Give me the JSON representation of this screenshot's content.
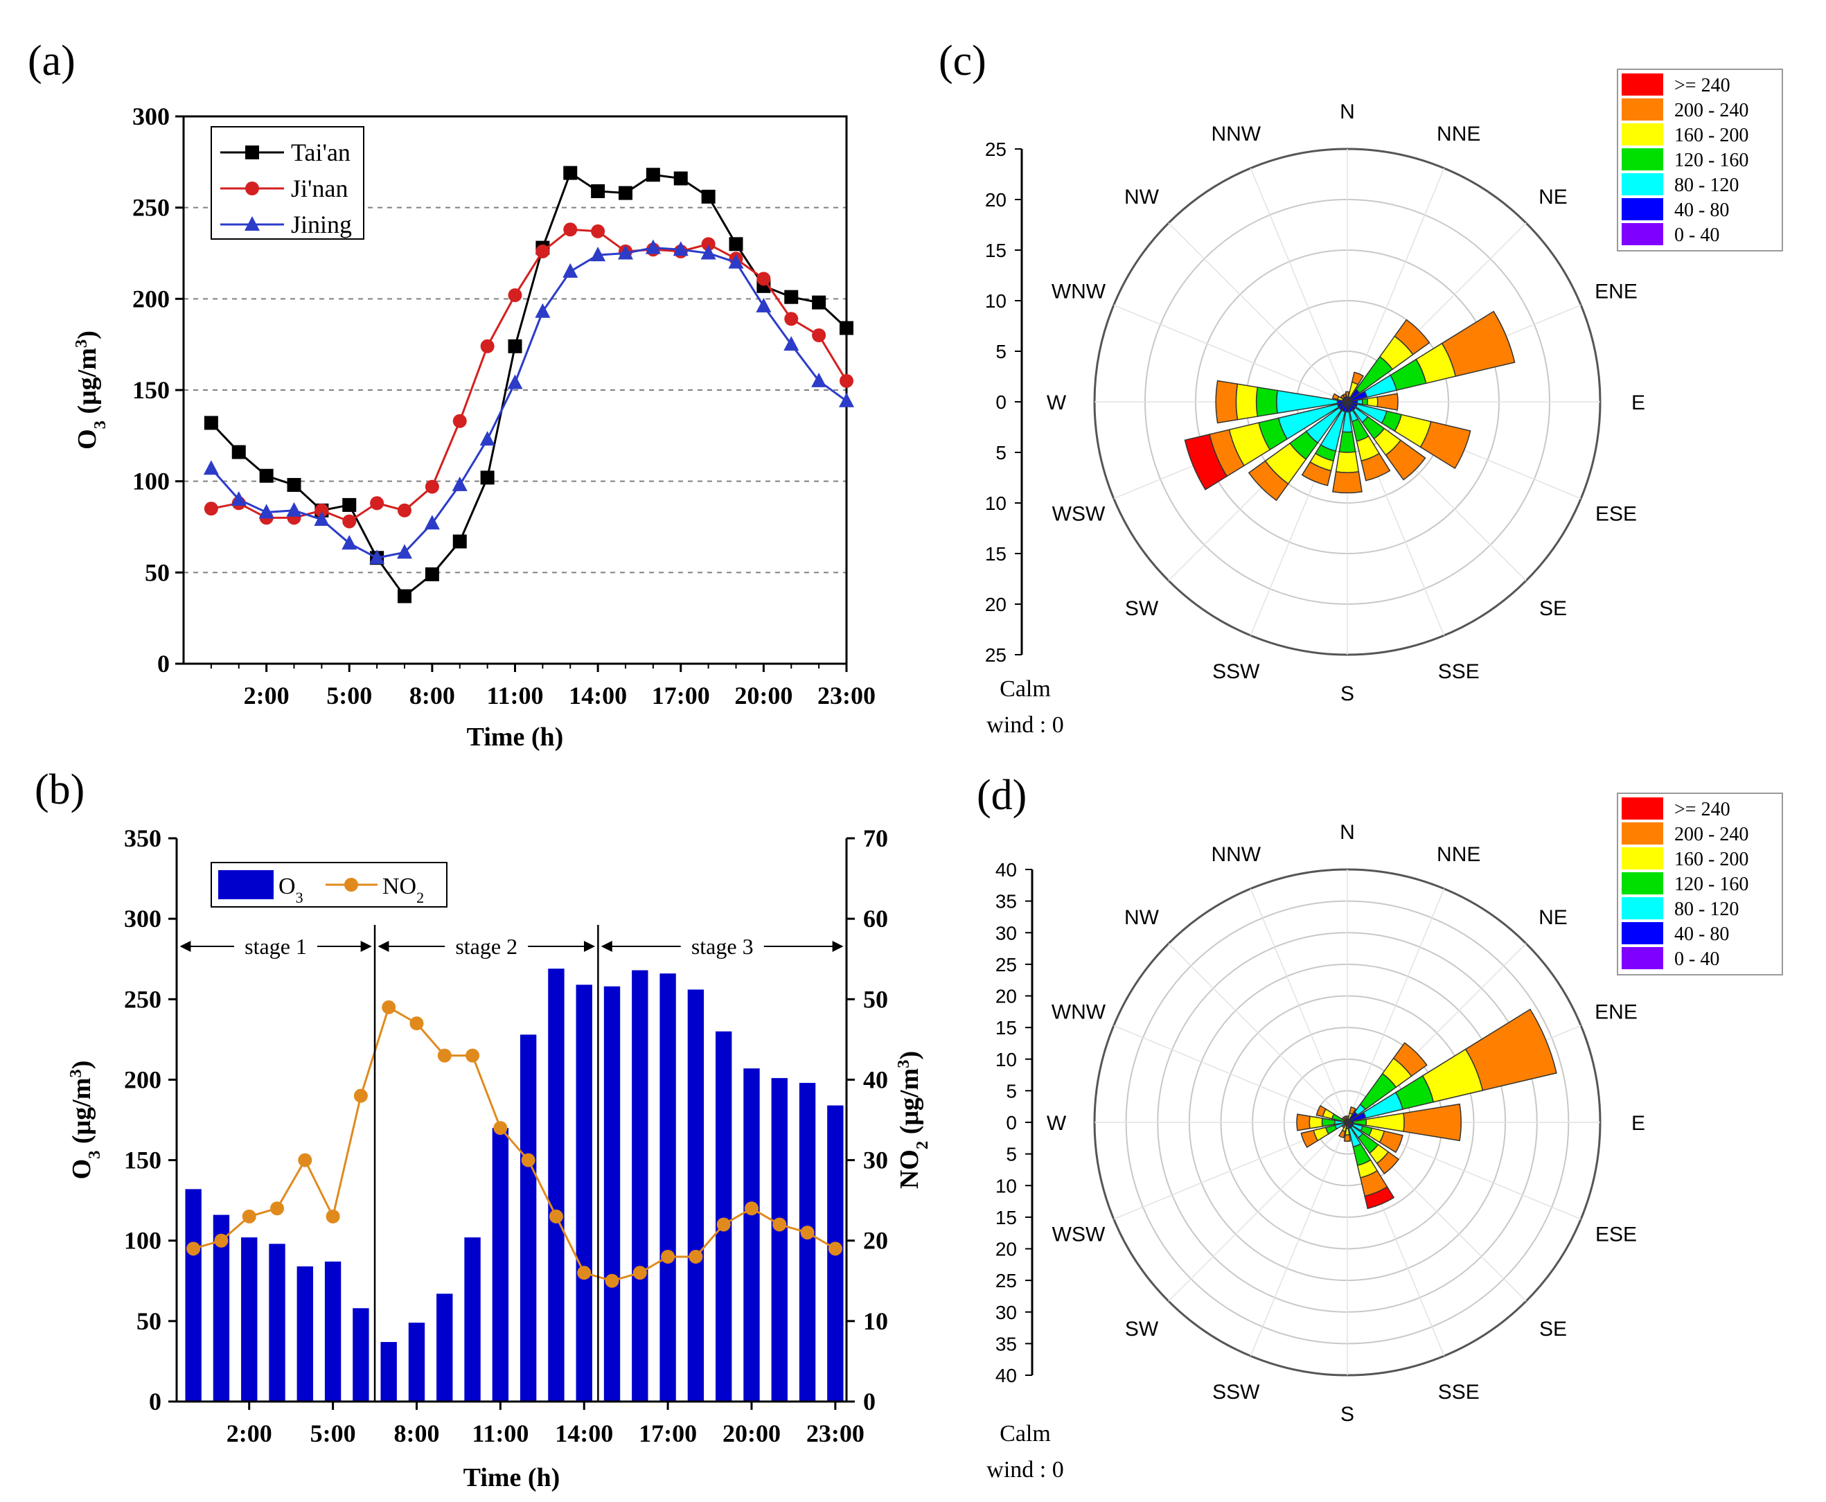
{
  "figure": {
    "panel_labels": [
      "(a)",
      "(b)",
      "(c)",
      "(d)"
    ],
    "colors": {
      "axis": "#000000",
      "grid": "#808080",
      "rose_grid": "#c8c8c8",
      "bar_blue": "#0000cd",
      "no2_orange": "#e08a1e"
    }
  },
  "chart_data": [
    {
      "panel": "(a)",
      "type": "line",
      "title": "",
      "xlabel": "Time (h)",
      "ylabel": "O3 (μg/m3)",
      "ylabel_parts": {
        "main": "O",
        "sub": "3",
        "unit": " (μg/m",
        "sup": "3",
        "close": ")"
      },
      "x": [
        1,
        2,
        3,
        4,
        5,
        6,
        7,
        8,
        9,
        10,
        11,
        12,
        13,
        14,
        15,
        16,
        17,
        18,
        19,
        20,
        21,
        22,
        23,
        24
      ],
      "xlim": [
        0,
        24
      ],
      "xticks": [
        3,
        6,
        9,
        12,
        15,
        18,
        21,
        24
      ],
      "xtick_labels": [
        "2:00",
        "5:00",
        "8:00",
        "11:00",
        "14:00",
        "17:00",
        "20:00",
        "23:00"
      ],
      "ylim": [
        0,
        300
      ],
      "yticks": [
        0,
        50,
        100,
        150,
        200,
        250,
        300
      ],
      "grid": "dashed horizontal",
      "legend_position": "top-left",
      "series": [
        {
          "name": "Tai'an",
          "color": "#000000",
          "marker": "square",
          "values": [
            132,
            116,
            103,
            98,
            84,
            87,
            58,
            37,
            49,
            67,
            102,
            174,
            228,
            269,
            259,
            258,
            268,
            266,
            256,
            230,
            207,
            201,
            198,
            184
          ]
        },
        {
          "name": "Ji'nan",
          "color": "#d42020",
          "marker": "circle",
          "values": [
            85,
            88,
            80,
            80,
            84,
            78,
            88,
            84,
            97,
            133,
            174,
            202,
            226,
            238,
            237,
            226,
            227,
            226,
            230,
            222,
            211,
            189,
            180,
            155
          ]
        },
        {
          "name": "Jining",
          "color": "#2c3cc8",
          "marker": "triangle",
          "values": [
            107,
            90,
            83,
            84,
            79,
            66,
            58,
            61,
            77,
            98,
            123,
            154,
            193,
            215,
            224,
            225,
            228,
            227,
            225,
            220,
            196,
            175,
            155,
            144
          ]
        }
      ]
    },
    {
      "panel": "(b)",
      "type": "bar",
      "xlabel": "Time (h)",
      "ylabel": "O3 (μg/m3)",
      "ylabel_parts": {
        "main": "O",
        "sub": "3",
        "unit": " (μg/m",
        "sup": "3",
        "close": ")"
      },
      "ylabel_right": "NO2 (μg/m3)",
      "ylabel_right_parts": {
        "main": "NO",
        "sub": "2",
        "unit": " (μg/m",
        "sup": "3",
        "close": ")"
      },
      "x": [
        1,
        2,
        3,
        4,
        5,
        6,
        7,
        8,
        9,
        10,
        11,
        12,
        13,
        14,
        15,
        16,
        17,
        18,
        19,
        20,
        21,
        22,
        23,
        24
      ],
      "xlim": [
        0,
        24
      ],
      "xticks": [
        3,
        6,
        9,
        12,
        15,
        18,
        21,
        24
      ],
      "xtick_labels": [
        "2:00",
        "5:00",
        "8:00",
        "11:00",
        "14:00",
        "17:00",
        "20:00",
        "23:00"
      ],
      "ylim": [
        0,
        350
      ],
      "yticks": [
        0,
        50,
        100,
        150,
        200,
        250,
        300,
        350
      ],
      "ylim_right": [
        0,
        70
      ],
      "yticks_right": [
        0,
        10,
        20,
        30,
        40,
        50,
        60,
        70
      ],
      "legend_position": "top-left",
      "legend": [
        {
          "label_main": "O",
          "label_sub": "3",
          "kind": "bar",
          "color": "#0000cd"
        },
        {
          "label_main": "NO",
          "label_sub": "2",
          "kind": "line",
          "color": "#e08a1e"
        }
      ],
      "series": [
        {
          "name": "O3",
          "axis": "left",
          "kind": "bar",
          "color": "#0000cd",
          "values": [
            132,
            116,
            102,
            98,
            84,
            87,
            58,
            37,
            49,
            67,
            102,
            170,
            228,
            269,
            259,
            258,
            268,
            266,
            256,
            230,
            207,
            201,
            198,
            184
          ]
        },
        {
          "name": "NO2",
          "axis": "right",
          "kind": "line",
          "color": "#e08a1e",
          "values": [
            19,
            20,
            23,
            24,
            30,
            23,
            38,
            49,
            47,
            43,
            43,
            34,
            30,
            23,
            16,
            15,
            16,
            18,
            18,
            22,
            24,
            22,
            21,
            19
          ]
        }
      ],
      "stage_dividers_x": [
        7.5,
        15.5
      ],
      "stages": [
        {
          "label": "stage 1",
          "from": 0,
          "to": 7.5
        },
        {
          "label": "stage 2",
          "from": 7.5,
          "to": 15.5
        },
        {
          "label": "stage 3",
          "from": 15.5,
          "to": 24
        }
      ]
    },
    {
      "panel": "(c)",
      "type": "windrose",
      "directions": [
        "N",
        "NNE",
        "NE",
        "ENE",
        "E",
        "ESE",
        "SE",
        "SSE",
        "S",
        "SSW",
        "SW",
        "WSW",
        "W",
        "WNW",
        "NW",
        "NNW"
      ],
      "radial_max": 25,
      "radial_ticks": [
        0,
        5,
        10,
        15,
        20,
        25
      ],
      "axis_labels_top": [
        "25",
        "20",
        "15",
        "10",
        "5",
        "0"
      ],
      "axis_labels_bottom": [
        "5",
        "10",
        "15",
        "20",
        "25"
      ],
      "calm_label": [
        "Calm",
        "wind : 0"
      ],
      "legend_position": "top-right",
      "bins": [
        ">= 240",
        "200 - 240",
        "160 - 200",
        "120 - 160",
        "80 - 120",
        "40 - 80",
        "0 - 40"
      ],
      "bin_colors": [
        "#ff0000",
        "#ff8000",
        "#ffff00",
        "#00e000",
        "#00ffff",
        "#0000ff",
        "#8000ff"
      ],
      "petals": [
        {
          "dir": "N",
          "segments": [
            0.5,
            0.5,
            0,
            0,
            0,
            0,
            0
          ]
        },
        {
          "dir": "NNE",
          "segments": [
            0.5,
            1,
            1.5,
            0,
            0,
            0,
            0
          ]
        },
        {
          "dir": "NE",
          "segments": [
            1.5,
            2,
            2.5,
            4,
            0,
            0,
            0
          ]
        },
        {
          "dir": "ENE",
          "segments": [
            2,
            6,
            3,
            3,
            3,
            0,
            0
          ]
        },
        {
          "dir": "E",
          "segments": [
            1,
            2,
            1,
            0.5,
            0.5,
            0,
            0
          ]
        },
        {
          "dir": "ESE",
          "segments": [
            1,
            4,
            3,
            1.5,
            3,
            0,
            0
          ]
        },
        {
          "dir": "SE",
          "segments": [
            1,
            3,
            2,
            2,
            1.5,
            0,
            0
          ]
        },
        {
          "dir": "SSE",
          "segments": [
            1,
            2,
            2,
            2,
            1,
            0,
            0
          ]
        },
        {
          "dir": "S",
          "segments": [
            1,
            2,
            2,
            2,
            2,
            0,
            0
          ]
        },
        {
          "dir": "SSW",
          "segments": [
            1,
            1.5,
            1,
            1,
            4,
            0,
            0
          ]
        },
        {
          "dir": "SW",
          "segments": [
            1,
            2,
            3,
            2,
            4,
            0,
            0
          ]
        },
        {
          "dir": "WSW",
          "segments": [
            1,
            2,
            3,
            2,
            6,
            2.5,
            0
          ]
        },
        {
          "dir": "W",
          "segments": [
            1,
            2,
            2,
            2,
            6,
            0,
            0
          ]
        },
        {
          "dir": "WNW",
          "segments": [
            0.5,
            0.5,
            0.5,
            0,
            0,
            0,
            0
          ]
        },
        {
          "dir": "NW",
          "segments": [
            0.5,
            0.3,
            0,
            0,
            0,
            0,
            0
          ]
        },
        {
          "dir": "NNW",
          "segments": [
            0.5,
            0.3,
            0,
            0,
            0,
            0,
            0
          ]
        }
      ]
    },
    {
      "panel": "(d)",
      "type": "windrose",
      "directions": [
        "N",
        "NNE",
        "NE",
        "ENE",
        "E",
        "ESE",
        "SE",
        "SSE",
        "S",
        "SSW",
        "SW",
        "WSW",
        "W",
        "WNW",
        "NW",
        "NNW"
      ],
      "radial_max": 40,
      "radial_ticks": [
        0,
        5,
        10,
        15,
        20,
        25,
        30,
        35,
        40
      ],
      "axis_labels_top": [
        "40",
        "35",
        "30",
        "25",
        "20",
        "15",
        "10",
        "5",
        "0"
      ],
      "axis_labels_bottom": [
        "5",
        "10",
        "15",
        "20",
        "25",
        "30",
        "35",
        "40"
      ],
      "calm_label": [
        "Calm",
        "wind : 0"
      ],
      "legend_position": "top-right",
      "bins": [
        ">= 240",
        "200 - 240",
        "160 - 200",
        "120 - 160",
        "80 - 120",
        "40 - 80",
        "0 - 40"
      ],
      "bin_colors": [
        "#ff0000",
        "#ff8000",
        "#ffff00",
        "#00e000",
        "#00ffff",
        "#0000ff",
        "#8000ff"
      ],
      "petals": [
        {
          "dir": "N",
          "segments": [
            0.5,
            0.5,
            0,
            0,
            0,
            0,
            0
          ]
        },
        {
          "dir": "NNE",
          "segments": [
            0.5,
            1,
            1,
            0,
            0,
            0,
            0
          ]
        },
        {
          "dir": "NE",
          "segments": [
            2,
            3,
            3,
            6,
            1.5,
            0,
            0
          ]
        },
        {
          "dir": "ENE",
          "segments": [
            3,
            12,
            8,
            5,
            6,
            0,
            0
          ]
        },
        {
          "dir": "E",
          "segments": [
            1,
            9,
            6,
            2,
            0,
            0,
            0
          ]
        },
        {
          "dir": "ESE",
          "segments": [
            1,
            3,
            2,
            1.5,
            1.5,
            0,
            0
          ]
        },
        {
          "dir": "SE",
          "segments": [
            1,
            2,
            2,
            3,
            2,
            0,
            0
          ]
        },
        {
          "dir": "SSE",
          "segments": [
            1,
            3,
            2,
            3,
            3,
            2,
            0
          ]
        },
        {
          "dir": "S",
          "segments": [
            0.5,
            1,
            1,
            0.5,
            0,
            0,
            0
          ]
        },
        {
          "dir": "SSW",
          "segments": [
            0.5,
            1,
            1,
            0,
            0,
            0,
            0
          ]
        },
        {
          "dir": "SW",
          "segments": [
            0.5,
            0.5,
            0,
            0,
            0,
            0,
            0
          ]
        },
        {
          "dir": "WSW",
          "segments": [
            0.5,
            2,
            2,
            1.5,
            1.5,
            0,
            0
          ]
        },
        {
          "dir": "W",
          "segments": [
            0.5,
            2,
            2,
            2,
            1.5,
            0,
            0
          ]
        },
        {
          "dir": "WNW",
          "segments": [
            0.5,
            1,
            1.5,
            2,
            0,
            0,
            0
          ]
        },
        {
          "dir": "NW",
          "segments": [
            0.5,
            0.5,
            0,
            0,
            0,
            0,
            0
          ]
        },
        {
          "dir": "NNW",
          "segments": [
            0.5,
            0.5,
            0,
            0,
            0,
            0,
            0
          ]
        }
      ]
    }
  ]
}
